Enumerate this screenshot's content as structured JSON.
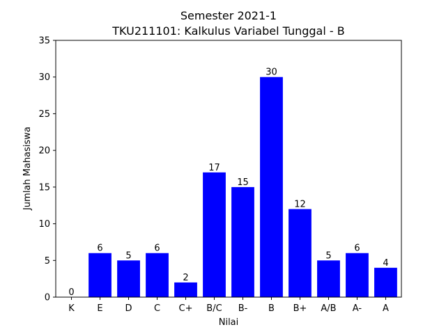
{
  "chart_data": {
    "type": "bar",
    "title": "Semester 2021-1",
    "subtitle": "TKU211101: Kalkulus Variabel Tunggal - B",
    "xlabel": "Nilai",
    "ylabel": "Jumlah Mahasiswa",
    "categories": [
      "K",
      "E",
      "D",
      "C",
      "C+",
      "B/C",
      "B-",
      "B",
      "B+",
      "A/B",
      "A-",
      "A"
    ],
    "values": [
      0,
      6,
      5,
      6,
      2,
      17,
      15,
      30,
      12,
      5,
      6,
      4
    ],
    "ylim": [
      0,
      35
    ],
    "yticks": [
      0,
      5,
      10,
      15,
      20,
      25,
      30,
      35
    ],
    "bar_color": "#0000ff",
    "grid": false
  }
}
